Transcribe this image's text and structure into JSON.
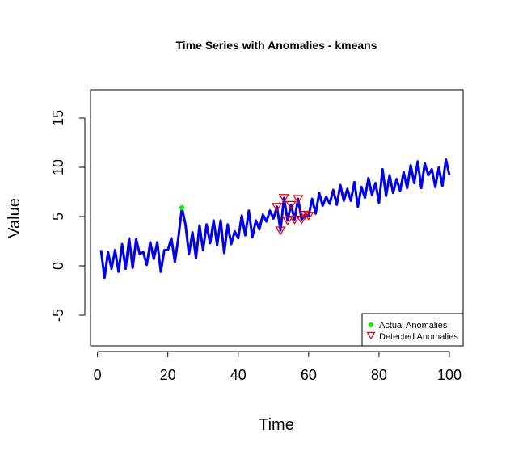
{
  "chart_data": {
    "type": "line",
    "title": "Time Series with Anomalies - kmeans",
    "xlabel": "Time",
    "ylabel": "Value",
    "xlim": [
      1,
      100
    ],
    "ylim": [
      -8,
      18
    ],
    "xticks": [
      0,
      20,
      40,
      60,
      80,
      100
    ],
    "yticks": [
      -5,
      0,
      5,
      10,
      15
    ],
    "grid": false,
    "legend_position": "bottom-right",
    "colors": {
      "series": "#0000ee",
      "actual_anomaly": "#00ee00",
      "detected_anomaly": "#ee0000"
    },
    "series": [
      {
        "name": "",
        "x": [
          1,
          2,
          3,
          4,
          5,
          6,
          7,
          8,
          9,
          10,
          11,
          12,
          13,
          14,
          15,
          16,
          17,
          18,
          19,
          20,
          21,
          22,
          23,
          24,
          25,
          26,
          27,
          28,
          29,
          30,
          31,
          32,
          33,
          34,
          35,
          36,
          37,
          38,
          39,
          40,
          41,
          42,
          43,
          44,
          45,
          46,
          47,
          48,
          49,
          50,
          51,
          52,
          53,
          54,
          55,
          56,
          57,
          58,
          59,
          60,
          61,
          62,
          63,
          64,
          65,
          66,
          67,
          68,
          69,
          70,
          71,
          72,
          73,
          74,
          75,
          76,
          77,
          78,
          79,
          80,
          81,
          82,
          83,
          84,
          85,
          86,
          87,
          88,
          89,
          90,
          91,
          92,
          93,
          94,
          95,
          96,
          97,
          98,
          99,
          100
        ],
        "values": [
          1.6,
          -1.2,
          1.4,
          -0.3,
          1.6,
          -0.6,
          2.2,
          -0.3,
          2.8,
          -0.2,
          2.7,
          1.2,
          1.4,
          0.1,
          2.4,
          0.7,
          2.4,
          -0.6,
          1.6,
          1.6,
          2.8,
          0.4,
          2.9,
          5.9,
          4.2,
          1.2,
          3.4,
          0.8,
          4.1,
          1.6,
          4.2,
          2.3,
          4.6,
          2.1,
          4.6,
          1.3,
          4.2,
          2.2,
          3.5,
          2.8,
          5.1,
          3.1,
          5.6,
          2.9,
          4.6,
          3.7,
          5.2,
          4.5,
          5.6,
          4.8,
          6.0,
          3.6,
          6.9,
          4.6,
          6.2,
          4.7,
          6.8,
          4.7,
          5.2,
          5.1,
          6.8,
          5.3,
          7.4,
          6.1,
          7.0,
          6.3,
          7.7,
          6.2,
          8.2,
          6.6,
          7.8,
          6.6,
          8.5,
          6.0,
          8.0,
          6.9,
          8.9,
          7.2,
          8.4,
          6.4,
          9.8,
          7.1,
          9.2,
          7.4,
          8.8,
          7.6,
          9.5,
          7.9,
          10.2,
          8.4,
          10.6,
          7.9,
          10.4,
          9.2,
          9.8,
          8.0,
          10.0,
          8.1,
          10.8,
          9.2
        ]
      }
    ],
    "actual_anomalies": [
      {
        "x": 24,
        "y": 5.9
      }
    ],
    "detected_anomalies": [
      {
        "x": 51,
        "y": 6.0
      },
      {
        "x": 52,
        "y": 3.6
      },
      {
        "x": 53,
        "y": 6.9
      },
      {
        "x": 54,
        "y": 4.6
      },
      {
        "x": 55,
        "y": 6.2
      },
      {
        "x": 56,
        "y": 4.7
      },
      {
        "x": 57,
        "y": 6.8
      },
      {
        "x": 58,
        "y": 4.7
      },
      {
        "x": 59,
        "y": 5.2
      },
      {
        "x": 60,
        "y": 5.1
      }
    ],
    "legend": [
      {
        "label": "Actual Anomalies",
        "marker": "filled-circle"
      },
      {
        "label": "Detected Anomalies",
        "marker": "open-triangle-down"
      }
    ]
  }
}
